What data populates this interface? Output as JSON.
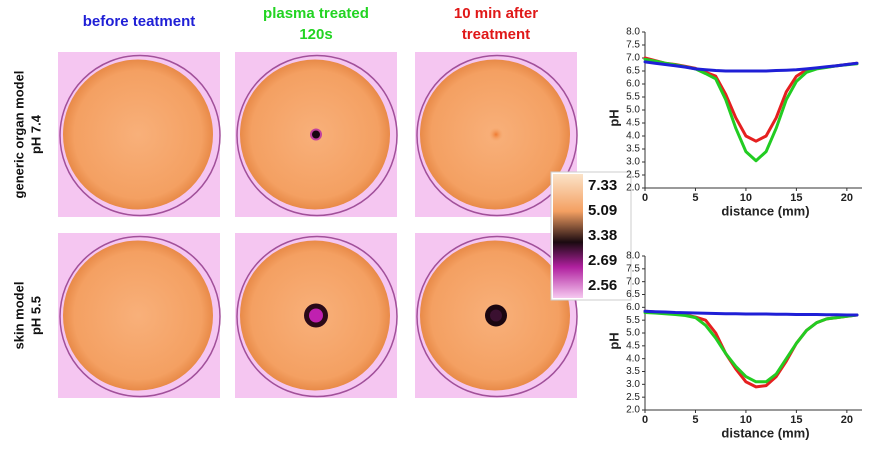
{
  "header": {
    "columns": [
      {
        "lines": [
          "before teatment"
        ],
        "color": "#1f1fd6"
      },
      {
        "lines": [
          "plasma treated",
          "120s"
        ],
        "color": "#22d422"
      },
      {
        "lines": [
          "10 min after",
          "treatment"
        ],
        "color": "#e01818"
      }
    ]
  },
  "rows": [
    {
      "lines": [
        "generic organ model",
        "pH 7.4"
      ]
    },
    {
      "lines": [
        "skin model",
        "pH 5.5"
      ]
    }
  ],
  "colorbar": {
    "ticks": [
      7.33,
      5.09,
      3.38,
      2.69,
      2.56
    ]
  },
  "chart_data": [
    {
      "type": "line",
      "xlabel": "distance (mm)",
      "ylabel": "pH",
      "x": [
        0,
        1,
        2,
        3,
        4,
        5,
        6,
        7,
        8,
        9,
        10,
        11,
        12,
        13,
        14,
        15,
        16,
        17,
        18,
        19,
        20,
        21
      ],
      "xlim": [
        0,
        21.5
      ],
      "xticks": [
        0,
        5,
        10,
        15,
        20
      ],
      "ylim": [
        2.0,
        8.0
      ],
      "yticks": [
        {
          "value": 2.0,
          "label": "2.0"
        },
        {
          "value": 2.5,
          "label": "2.5"
        },
        {
          "value": 3.0,
          "label": "3.0"
        },
        {
          "value": 3.5,
          "label": "3.5"
        },
        {
          "value": 4.0,
          "label": "4.0"
        },
        {
          "value": 4.5,
          "label": "4.5"
        },
        {
          "value": 5.0,
          "label": "5.0"
        },
        {
          "value": 5.5,
          "label": "5.5"
        },
        {
          "value": 6.0,
          "label": "6.0"
        },
        {
          "value": 6.5,
          "label": "6.5"
        },
        {
          "value": 7.0,
          "label": "7.0"
        },
        {
          "value": 7.5,
          "label": "7.5"
        },
        {
          "value": 8.0,
          "label": "8.0"
        }
      ],
      "series": [
        {
          "color": "#e52020",
          "values": [
            7.0,
            6.9,
            6.8,
            6.75,
            6.68,
            6.6,
            6.45,
            6.3,
            5.6,
            4.7,
            4.0,
            3.8,
            4.0,
            4.7,
            5.7,
            6.3,
            6.55,
            6.6,
            6.65,
            6.7,
            6.75,
            6.8
          ]
        },
        {
          "color": "#22cc22",
          "values": [
            6.95,
            6.88,
            6.8,
            6.74,
            6.66,
            6.58,
            6.4,
            6.2,
            5.4,
            4.3,
            3.4,
            3.05,
            3.4,
            4.3,
            5.4,
            6.1,
            6.45,
            6.58,
            6.64,
            6.7,
            6.74,
            6.78
          ]
        },
        {
          "color": "#1f1fd6",
          "values": [
            6.85,
            6.8,
            6.75,
            6.7,
            6.65,
            6.58,
            6.55,
            6.52,
            6.5,
            6.5,
            6.5,
            6.5,
            6.5,
            6.52,
            6.53,
            6.55,
            6.58,
            6.62,
            6.66,
            6.7,
            6.75,
            6.8
          ]
        }
      ]
    },
    {
      "type": "line",
      "xlabel": "distance (mm)",
      "ylabel": "pH",
      "x": [
        0,
        1,
        2,
        3,
        4,
        5,
        6,
        7,
        8,
        9,
        10,
        11,
        12,
        13,
        14,
        15,
        16,
        17,
        18,
        19,
        20,
        21
      ],
      "xlim": [
        0,
        21.5
      ],
      "xticks": [
        0,
        5,
        10,
        15,
        20
      ],
      "ylim": [
        2.0,
        8.0
      ],
      "yticks": [
        {
          "value": 2.0,
          "label": "2.0"
        },
        {
          "value": 2.5,
          "label": "2.5"
        },
        {
          "value": 3.0,
          "label": "3.0"
        },
        {
          "value": 3.5,
          "label": "3.5"
        },
        {
          "value": 4.0,
          "label": "4.0"
        },
        {
          "value": 4.5,
          "label": "4.5"
        },
        {
          "value": 5.0,
          "label": "5.0"
        },
        {
          "value": 5.5,
          "label": "5.5"
        },
        {
          "value": 6.0,
          "label": "6.0"
        },
        {
          "value": 6.5,
          "label": "6.5"
        },
        {
          "value": 7.0,
          "label": "7.0"
        },
        {
          "value": 7.5,
          "label": "7.5"
        },
        {
          "value": 8.0,
          "label": "8.0"
        }
      ],
      "series": [
        {
          "color": "#e52020",
          "values": [
            5.85,
            5.82,
            5.8,
            5.76,
            5.7,
            5.62,
            5.5,
            5.0,
            4.2,
            3.6,
            3.1,
            2.9,
            2.95,
            3.3,
            3.9,
            4.6,
            5.1,
            5.4,
            5.55,
            5.6,
            5.65,
            5.7
          ]
        },
        {
          "color": "#22cc22",
          "values": [
            5.8,
            5.78,
            5.75,
            5.72,
            5.68,
            5.6,
            5.3,
            4.8,
            4.2,
            3.7,
            3.3,
            3.1,
            3.1,
            3.4,
            4.0,
            4.6,
            5.1,
            5.4,
            5.55,
            5.6,
            5.65,
            5.7
          ]
        },
        {
          "color": "#1f1fd6",
          "values": [
            5.85,
            5.83,
            5.82,
            5.8,
            5.79,
            5.78,
            5.77,
            5.76,
            5.75,
            5.75,
            5.74,
            5.74,
            5.74,
            5.73,
            5.73,
            5.72,
            5.72,
            5.72,
            5.71,
            5.71,
            5.7,
            5.7
          ]
        }
      ]
    }
  ]
}
